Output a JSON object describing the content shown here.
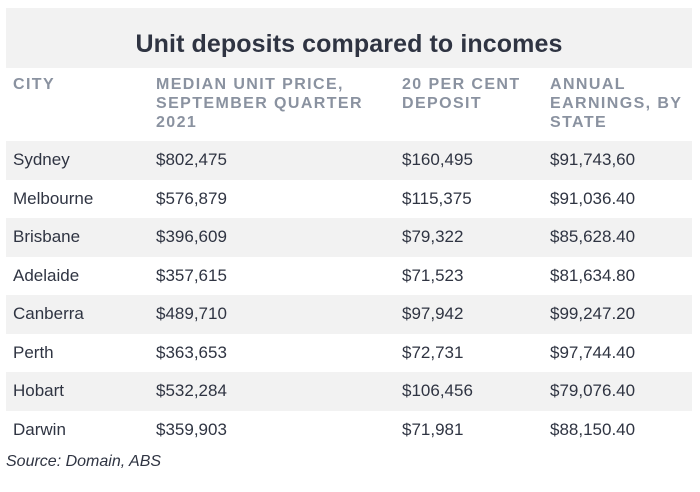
{
  "chart_data": {
    "type": "table",
    "title": "Unit deposits compared to incomes",
    "columns": [
      "CITY",
      "MEDIAN UNIT PRICE, SEPTEMBER QUARTER 2021",
      "20 PER CENT DEPOSIT",
      "ANNUAL EARNINGS, BY STATE"
    ],
    "rows": [
      [
        "Sydney",
        "$802,475",
        "$160,495",
        "$91,743,60"
      ],
      [
        "Melbourne",
        "$576,879",
        "$115,375",
        "$91,036.40"
      ],
      [
        "Brisbane",
        "$396,609",
        "$79,322",
        "$85,628.40"
      ],
      [
        "Adelaide",
        "$357,615",
        "$71,523",
        "$81,634.80"
      ],
      [
        "Canberra",
        "$489,710",
        "$97,942",
        "$99,247.20"
      ],
      [
        "Perth",
        "$363,653",
        "$72,731",
        "$97,744.40"
      ],
      [
        "Hobart",
        "$532,284",
        "$106,456",
        "$79,076.40"
      ],
      [
        "Darwin",
        "$359,903",
        "$71,981",
        "$88,150.40"
      ]
    ],
    "source": "Source: Domain, ABS"
  },
  "colors": {
    "title": "#2f3442",
    "header": "#8a92a0",
    "stripe": "#f2f2f2",
    "background": "#ffffff"
  }
}
